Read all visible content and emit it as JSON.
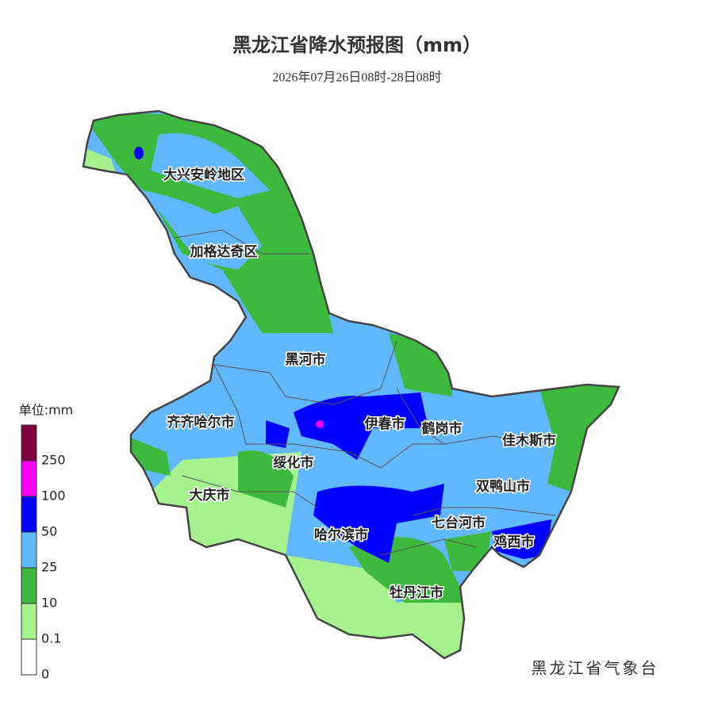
{
  "title": "黑龙江省降水预报图（mm）",
  "subtitle": "2026年07月26日08时-28日08时",
  "legend": {
    "title": "单位:mm",
    "items": [
      {
        "label": "0",
        "color": "#ffffff"
      },
      {
        "label": "0.1",
        "color": "#a6f28f"
      },
      {
        "label": "10",
        "color": "#3dba3d"
      },
      {
        "label": "25",
        "color": "#61b8ff"
      },
      {
        "label": "50",
        "color": "#0000ff"
      },
      {
        "label": "100",
        "color": "#fa00fa"
      },
      {
        "label": "250",
        "color": "#800040"
      }
    ]
  },
  "regions": [
    "大兴安岭地区",
    "加格达奇区",
    "黑河市",
    "齐齐哈尔市",
    "伊春市",
    "鹤岗市",
    "佳木斯市",
    "绥化市",
    "大庆市",
    "双鸭山市",
    "哈尔滨市",
    "七台河市",
    "鸡西市",
    "牡丹江市"
  ],
  "footer": "黑龙江省气象台"
}
